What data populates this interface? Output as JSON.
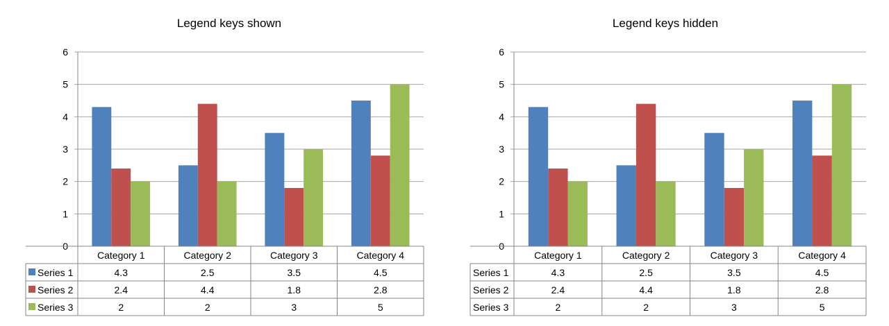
{
  "colors": {
    "series": [
      "#4F81BD",
      "#C0504D",
      "#9BBB59"
    ],
    "grid": "#A6A6A6",
    "axis": "#868686"
  },
  "chart_data": [
    {
      "type": "bar",
      "title": "Legend keys shown",
      "legend_keys": true,
      "categories": [
        "Category 1",
        "Category 2",
        "Category 3",
        "Category 4"
      ],
      "ylim": [
        0,
        6
      ],
      "yticks": [
        "0",
        "1",
        "2",
        "3",
        "4",
        "5",
        "6"
      ],
      "grid": true,
      "data_table": true,
      "series": [
        {
          "name": "Series 1",
          "values": [
            4.3,
            2.5,
            3.5,
            4.5
          ],
          "labels": [
            "4.3",
            "2.5",
            "3.5",
            "4.5"
          ]
        },
        {
          "name": "Series 2",
          "values": [
            2.4,
            4.4,
            1.8,
            2.8
          ],
          "labels": [
            "2.4",
            "4.4",
            "1.8",
            "2.8"
          ]
        },
        {
          "name": "Series 3",
          "values": [
            2,
            2,
            3,
            5
          ],
          "labels": [
            "2",
            "2",
            "3",
            "5"
          ]
        }
      ]
    },
    {
      "type": "bar",
      "title": "Legend keys hidden",
      "legend_keys": false,
      "categories": [
        "Category 1",
        "Category 2",
        "Category 3",
        "Category 4"
      ],
      "ylim": [
        0,
        6
      ],
      "yticks": [
        "0",
        "1",
        "2",
        "3",
        "4",
        "5",
        "6"
      ],
      "grid": true,
      "data_table": true,
      "series": [
        {
          "name": "Series 1",
          "values": [
            4.3,
            2.5,
            3.5,
            4.5
          ],
          "labels": [
            "4.3",
            "2.5",
            "3.5",
            "4.5"
          ]
        },
        {
          "name": "Series 2",
          "values": [
            2.4,
            4.4,
            1.8,
            2.8
          ],
          "labels": [
            "2.4",
            "4.4",
            "1.8",
            "2.8"
          ]
        },
        {
          "name": "Series 3",
          "values": [
            2,
            2,
            3,
            5
          ],
          "labels": [
            "2",
            "2",
            "3",
            "5"
          ]
        }
      ]
    }
  ]
}
